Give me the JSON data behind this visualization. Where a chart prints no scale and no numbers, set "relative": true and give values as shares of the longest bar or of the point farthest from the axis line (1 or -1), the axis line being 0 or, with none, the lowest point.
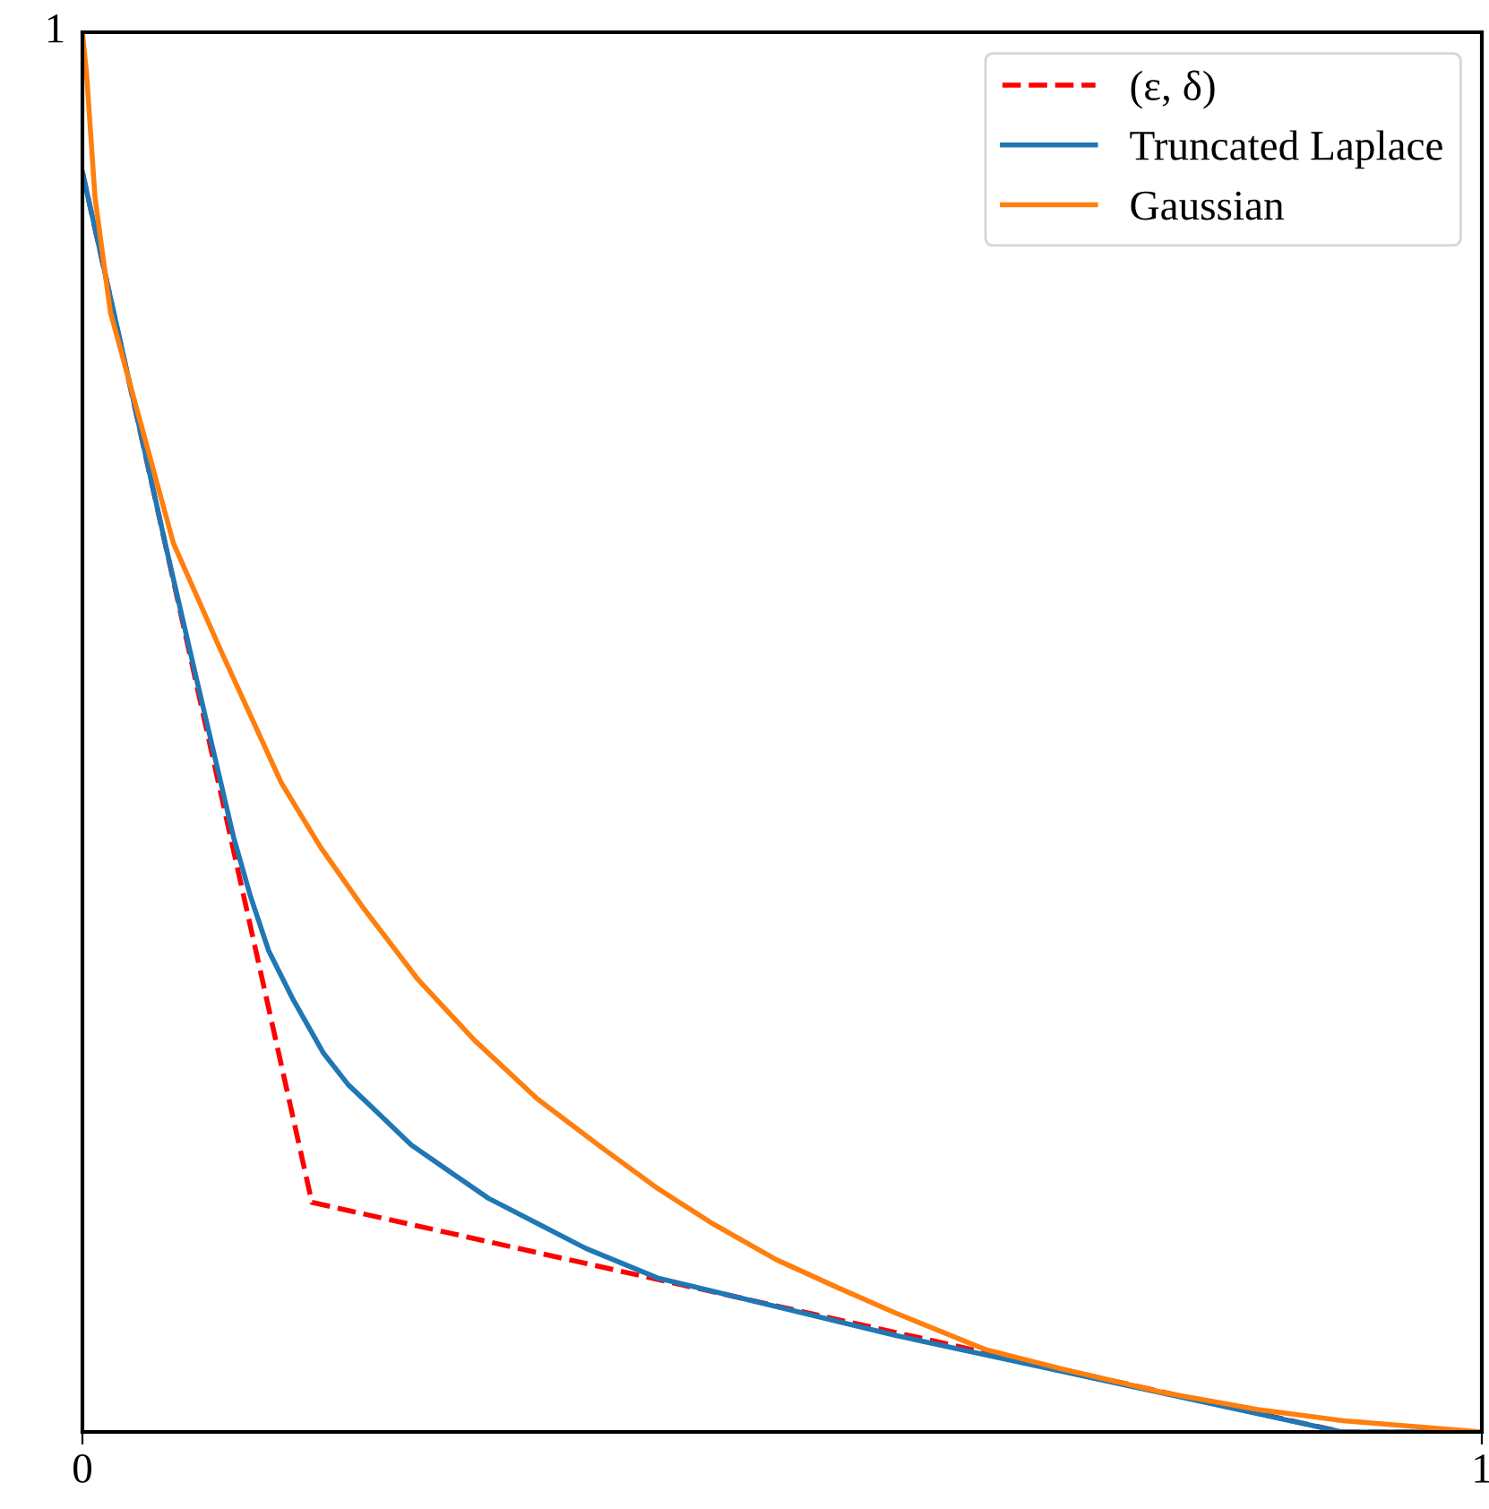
{
  "chart_data": {
    "type": "line",
    "xlim": [
      0,
      1
    ],
    "xticks": [
      0,
      1
    ],
    "relative": true,
    "annotations": [
      "1"
    ],
    "legend": "top right",
    "series": [
      {
        "name": "(ε, δ)",
        "color": "#ff0000",
        "line_style": "dashed",
        "x": [
          0,
          0.164,
          0.9,
          1
        ],
        "values": [
          0.9,
          0.164,
          0,
          0
        ]
      },
      {
        "name": "Truncated Laplace",
        "color": "#1f77b4",
        "line_style": "solid",
        "x": [
          0,
          0.03,
          0.06,
          0.082,
          0.108,
          0.12,
          0.133,
          0.15,
          0.172,
          0.19,
          0.21,
          0.235,
          0.261,
          0.29,
          0.325,
          0.36,
          0.411,
          0.581,
          0.9,
          1
        ],
        "values": [
          0.9,
          0.766,
          0.631,
          0.536,
          0.425,
          0.383,
          0.344,
          0.31,
          0.271,
          0.248,
          0.229,
          0.205,
          0.187,
          0.167,
          0.149,
          0.131,
          0.11,
          0.069,
          0,
          0
        ]
      },
      {
        "name": "Gaussian",
        "color": "#ff7f0e",
        "line_style": "solid",
        "x": [
          0,
          0.003,
          0.009,
          0.02,
          0.035,
          0.05,
          0.065,
          0.099,
          0.142,
          0.17,
          0.201,
          0.24,
          0.28,
          0.325,
          0.37,
          0.411,
          0.45,
          0.496,
          0.54,
          0.581,
          0.645,
          0.7,
          0.773,
          0.84,
          0.901,
          1
        ],
        "values": [
          1,
          0.97,
          0.882,
          0.8,
          0.745,
          0.69,
          0.635,
          0.558,
          0.464,
          0.418,
          0.374,
          0.323,
          0.28,
          0.238,
          0.204,
          0.174,
          0.149,
          0.123,
          0.103,
          0.085,
          0.059,
          0.045,
          0.028,
          0.016,
          0.008,
          0
        ]
      }
    ]
  }
}
